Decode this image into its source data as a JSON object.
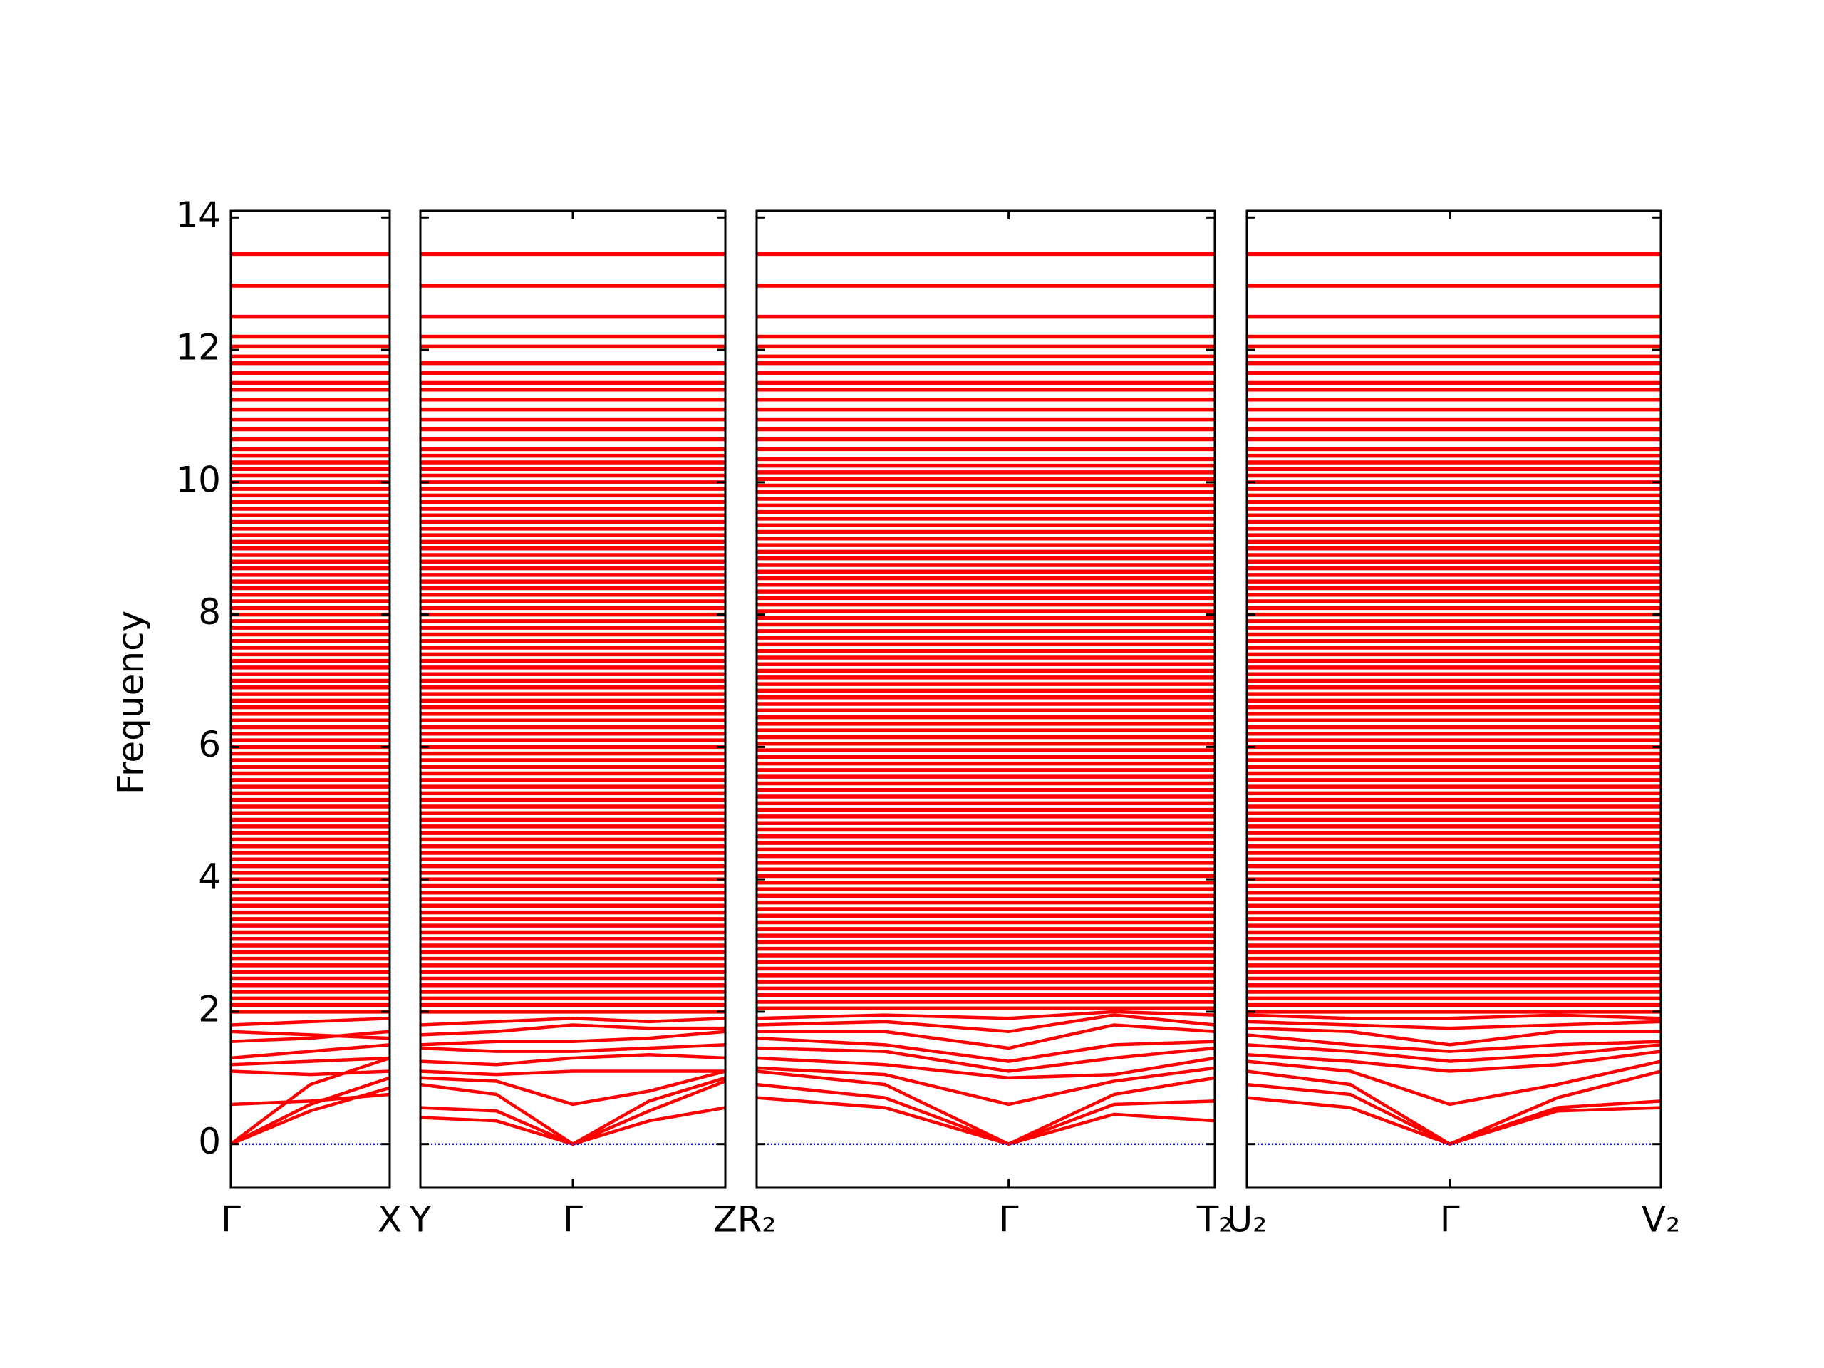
{
  "chart_data": [
    {
      "type": "line",
      "ylabel": "Frequency",
      "ylim": [
        -0.66,
        14.1
      ],
      "yticks": [
        0,
        2,
        4,
        6,
        8,
        10,
        12,
        14
      ],
      "color": "#ff0000",
      "hline": 0,
      "hline_color": "#0000ff",
      "xlim": [
        0,
        1
      ],
      "xticks": [
        {
          "value": 0,
          "label": "Γ"
        },
        {
          "value": 1,
          "label": "X"
        }
      ],
      "x": [
        0,
        0.5,
        1
      ],
      "series": [
        {
          "values": [
            0,
            0.5,
            0.85
          ]
        },
        {
          "values": [
            0,
            0.6,
            1.0
          ]
        },
        {
          "values": [
            0,
            0.9,
            1.3
          ]
        },
        {
          "values": [
            0.6,
            0.65,
            0.75
          ]
        },
        {
          "values": [
            1.1,
            1.05,
            1.1
          ]
        },
        {
          "values": [
            1.2,
            1.25,
            1.3
          ]
        },
        {
          "values": [
            1.3,
            1.4,
            1.5
          ]
        },
        {
          "values": [
            1.55,
            1.6,
            1.7
          ]
        },
        {
          "values": [
            1.7,
            1.65,
            1.6
          ]
        },
        {
          "values": [
            1.8,
            1.85,
            1.9
          ]
        }
      ],
      "flat_bands": [
        2,
        2.1,
        2.2,
        2.3,
        2.4,
        2.5,
        2.6,
        2.7,
        2.8,
        2.9,
        3,
        3.1,
        3.2,
        3.3,
        3.4,
        3.5,
        3.6,
        3.7,
        3.8,
        3.9,
        4,
        4.1,
        4.2,
        4.3,
        4.4,
        4.5,
        4.6,
        4.7,
        4.8,
        4.9,
        5,
        5.1,
        5.2,
        5.3,
        5.4,
        5.5,
        5.6,
        5.7,
        5.8,
        5.9,
        6,
        6.1,
        6.2,
        6.3,
        6.4,
        6.5,
        6.6,
        6.7,
        6.8,
        6.9,
        7,
        7.1,
        7.2,
        7.3,
        7.4,
        7.5,
        7.6,
        7.7,
        7.8,
        7.9,
        8,
        8.1,
        8.2,
        8.3,
        8.4,
        8.5,
        8.6,
        8.7,
        8.8,
        8.9,
        9,
        9.1,
        9.2,
        9.3,
        9.4,
        9.5,
        9.6,
        9.7,
        9.8,
        9.9,
        10,
        10.1,
        10.2,
        10.3,
        10.4,
        10.5,
        10.65,
        10.8,
        10.95,
        11.1,
        11.25,
        11.4,
        11.5,
        11.65,
        11.8,
        11.9,
        12.05,
        12.2,
        12.5,
        12.97,
        13.45
      ]
    },
    {
      "type": "line",
      "color": "#ff0000",
      "hline": 0,
      "hline_color": "#0000ff",
      "xlim": [
        0,
        1
      ],
      "xticks": [
        {
          "value": 0,
          "label": "Y"
        },
        {
          "value": 0.5,
          "label": "Γ"
        },
        {
          "value": 1,
          "label": "Z"
        }
      ],
      "x": [
        0,
        0.25,
        0.5,
        0.75,
        1
      ],
      "series": [
        {
          "values": [
            0.4,
            0.35,
            0,
            0.35,
            0.55
          ]
        },
        {
          "values": [
            0.55,
            0.5,
            0,
            0.5,
            0.95
          ]
        },
        {
          "values": [
            0.9,
            0.75,
            0,
            0.65,
            1.0
          ]
        },
        {
          "values": [
            1.0,
            0.95,
            0.6,
            0.8,
            1.1
          ]
        },
        {
          "values": [
            1.1,
            1.05,
            1.1,
            1.1,
            1.1
          ]
        },
        {
          "values": [
            1.25,
            1.2,
            1.3,
            1.35,
            1.3
          ]
        },
        {
          "values": [
            1.45,
            1.4,
            1.4,
            1.45,
            1.5
          ]
        },
        {
          "values": [
            1.5,
            1.55,
            1.55,
            1.6,
            1.7
          ]
        },
        {
          "values": [
            1.65,
            1.7,
            1.8,
            1.75,
            1.75
          ]
        },
        {
          "values": [
            1.8,
            1.85,
            1.9,
            1.85,
            1.9
          ]
        }
      ],
      "flat_bands": [
        2,
        2.1,
        2.2,
        2.3,
        2.4,
        2.5,
        2.6,
        2.7,
        2.8,
        2.9,
        3,
        3.1,
        3.2,
        3.3,
        3.4,
        3.5,
        3.6,
        3.7,
        3.8,
        3.9,
        4,
        4.1,
        4.2,
        4.3,
        4.4,
        4.5,
        4.6,
        4.7,
        4.8,
        4.9,
        5,
        5.1,
        5.2,
        5.3,
        5.4,
        5.5,
        5.6,
        5.7,
        5.8,
        5.9,
        6,
        6.1,
        6.2,
        6.3,
        6.4,
        6.5,
        6.6,
        6.7,
        6.8,
        6.9,
        7,
        7.1,
        7.2,
        7.3,
        7.4,
        7.5,
        7.6,
        7.7,
        7.8,
        7.9,
        8,
        8.1,
        8.2,
        8.3,
        8.4,
        8.5,
        8.6,
        8.7,
        8.8,
        8.9,
        9,
        9.1,
        9.2,
        9.3,
        9.4,
        9.5,
        9.6,
        9.7,
        9.8,
        9.9,
        10,
        10.1,
        10.2,
        10.3,
        10.4,
        10.5,
        10.65,
        10.8,
        10.95,
        11.1,
        11.25,
        11.4,
        11.5,
        11.65,
        11.8,
        12.05,
        12.2,
        12.5,
        12.97,
        13.45
      ]
    },
    {
      "type": "line",
      "color": "#ff0000",
      "hline": 0,
      "hline_color": "#0000ff",
      "xlim": [
        0,
        1
      ],
      "xticks": [
        {
          "value": 0,
          "label": "R₂"
        },
        {
          "value": 0.55,
          "label": "Γ"
        },
        {
          "value": 1,
          "label": "T₂"
        }
      ],
      "x": [
        0,
        0.28,
        0.55,
        0.78,
        1
      ],
      "series": [
        {
          "values": [
            0.7,
            0.55,
            0,
            0.45,
            0.35
          ]
        },
        {
          "values": [
            0.9,
            0.7,
            0,
            0.6,
            0.65
          ]
        },
        {
          "values": [
            1.1,
            0.9,
            0,
            0.75,
            1.0
          ]
        },
        {
          "values": [
            1.15,
            1.05,
            0.6,
            0.95,
            1.15
          ]
        },
        {
          "values": [
            1.3,
            1.2,
            1.0,
            1.05,
            1.3
          ]
        },
        {
          "values": [
            1.45,
            1.4,
            1.1,
            1.3,
            1.45
          ]
        },
        {
          "values": [
            1.6,
            1.5,
            1.25,
            1.5,
            1.55
          ]
        },
        {
          "values": [
            1.7,
            1.7,
            1.45,
            1.8,
            1.7
          ]
        },
        {
          "values": [
            1.8,
            1.85,
            1.7,
            1.95,
            1.8
          ]
        },
        {
          "values": [
            1.9,
            1.95,
            1.9,
            2.0,
            1.95
          ]
        }
      ],
      "flat_bands": [
        2.05,
        2.15,
        2.25,
        2.35,
        2.45,
        2.55,
        2.65,
        2.75,
        2.85,
        2.95,
        3.05,
        3.15,
        3.25,
        3.35,
        3.45,
        3.55,
        3.65,
        3.75,
        3.85,
        3.95,
        4.05,
        4.15,
        4.25,
        4.35,
        4.45,
        4.55,
        4.65,
        4.75,
        4.85,
        4.95,
        5.05,
        5.15,
        5.25,
        5.35,
        5.45,
        5.55,
        5.65,
        5.75,
        5.85,
        5.95,
        6.05,
        6.15,
        6.25,
        6.35,
        6.45,
        6.55,
        6.65,
        6.75,
        6.85,
        6.95,
        7.05,
        7.15,
        7.25,
        7.35,
        7.45,
        7.55,
        7.65,
        7.75,
        7.85,
        7.95,
        8.05,
        8.15,
        8.25,
        8.35,
        8.45,
        8.55,
        8.65,
        8.75,
        8.85,
        8.95,
        9.05,
        9.15,
        9.25,
        9.35,
        9.45,
        9.55,
        9.65,
        9.75,
        9.85,
        9.95,
        10.05,
        10.15,
        10.25,
        10.35,
        10.5,
        10.65,
        10.8,
        10.95,
        11.1,
        11.25,
        11.4,
        11.5,
        11.65,
        11.8,
        11.9,
        12.05,
        12.2,
        12.5,
        12.97,
        13.45
      ]
    },
    {
      "type": "line",
      "color": "#ff0000",
      "hline": 0,
      "hline_color": "#0000ff",
      "xlim": [
        0,
        1
      ],
      "xticks": [
        {
          "value": 0,
          "label": "U₂"
        },
        {
          "value": 0.49,
          "label": "Γ"
        },
        {
          "value": 1,
          "label": "V₂"
        }
      ],
      "x": [
        0,
        0.25,
        0.49,
        0.75,
        1
      ],
      "series": [
        {
          "values": [
            0.7,
            0.55,
            0,
            0.5,
            0.55
          ]
        },
        {
          "values": [
            0.9,
            0.75,
            0,
            0.55,
            0.65
          ]
        },
        {
          "values": [
            1.1,
            0.9,
            0,
            0.7,
            1.1
          ]
        },
        {
          "values": [
            1.25,
            1.1,
            0.6,
            0.9,
            1.25
          ]
        },
        {
          "values": [
            1.35,
            1.25,
            1.1,
            1.2,
            1.4
          ]
        },
        {
          "values": [
            1.5,
            1.4,
            1.25,
            1.35,
            1.5
          ]
        },
        {
          "values": [
            1.65,
            1.5,
            1.4,
            1.5,
            1.55
          ]
        },
        {
          "values": [
            1.75,
            1.7,
            1.5,
            1.7,
            1.7
          ]
        },
        {
          "values": [
            1.85,
            1.8,
            1.75,
            1.8,
            1.85
          ]
        },
        {
          "values": [
            1.95,
            1.9,
            1.9,
            1.95,
            1.9
          ]
        }
      ],
      "flat_bands": [
        2,
        2.1,
        2.2,
        2.3,
        2.4,
        2.5,
        2.6,
        2.7,
        2.8,
        2.9,
        3,
        3.1,
        3.2,
        3.3,
        3.4,
        3.5,
        3.6,
        3.7,
        3.8,
        3.9,
        4,
        4.1,
        4.2,
        4.3,
        4.4,
        4.5,
        4.6,
        4.7,
        4.8,
        4.9,
        5,
        5.1,
        5.2,
        5.3,
        5.4,
        5.5,
        5.6,
        5.7,
        5.8,
        5.9,
        6,
        6.1,
        6.2,
        6.3,
        6.4,
        6.5,
        6.6,
        6.7,
        6.8,
        6.9,
        7,
        7.1,
        7.2,
        7.3,
        7.4,
        7.5,
        7.6,
        7.7,
        7.8,
        7.9,
        8,
        8.1,
        8.2,
        8.3,
        8.4,
        8.5,
        8.6,
        8.7,
        8.8,
        8.9,
        9,
        9.1,
        9.2,
        9.3,
        9.4,
        9.5,
        9.6,
        9.7,
        9.8,
        9.9,
        10,
        10.1,
        10.2,
        10.3,
        10.4,
        10.5,
        10.65,
        10.8,
        10.95,
        11.1,
        11.25,
        11.4,
        11.5,
        11.65,
        11.8,
        11.9,
        12.05,
        12.2,
        12.5,
        12.97,
        13.45
      ]
    }
  ]
}
